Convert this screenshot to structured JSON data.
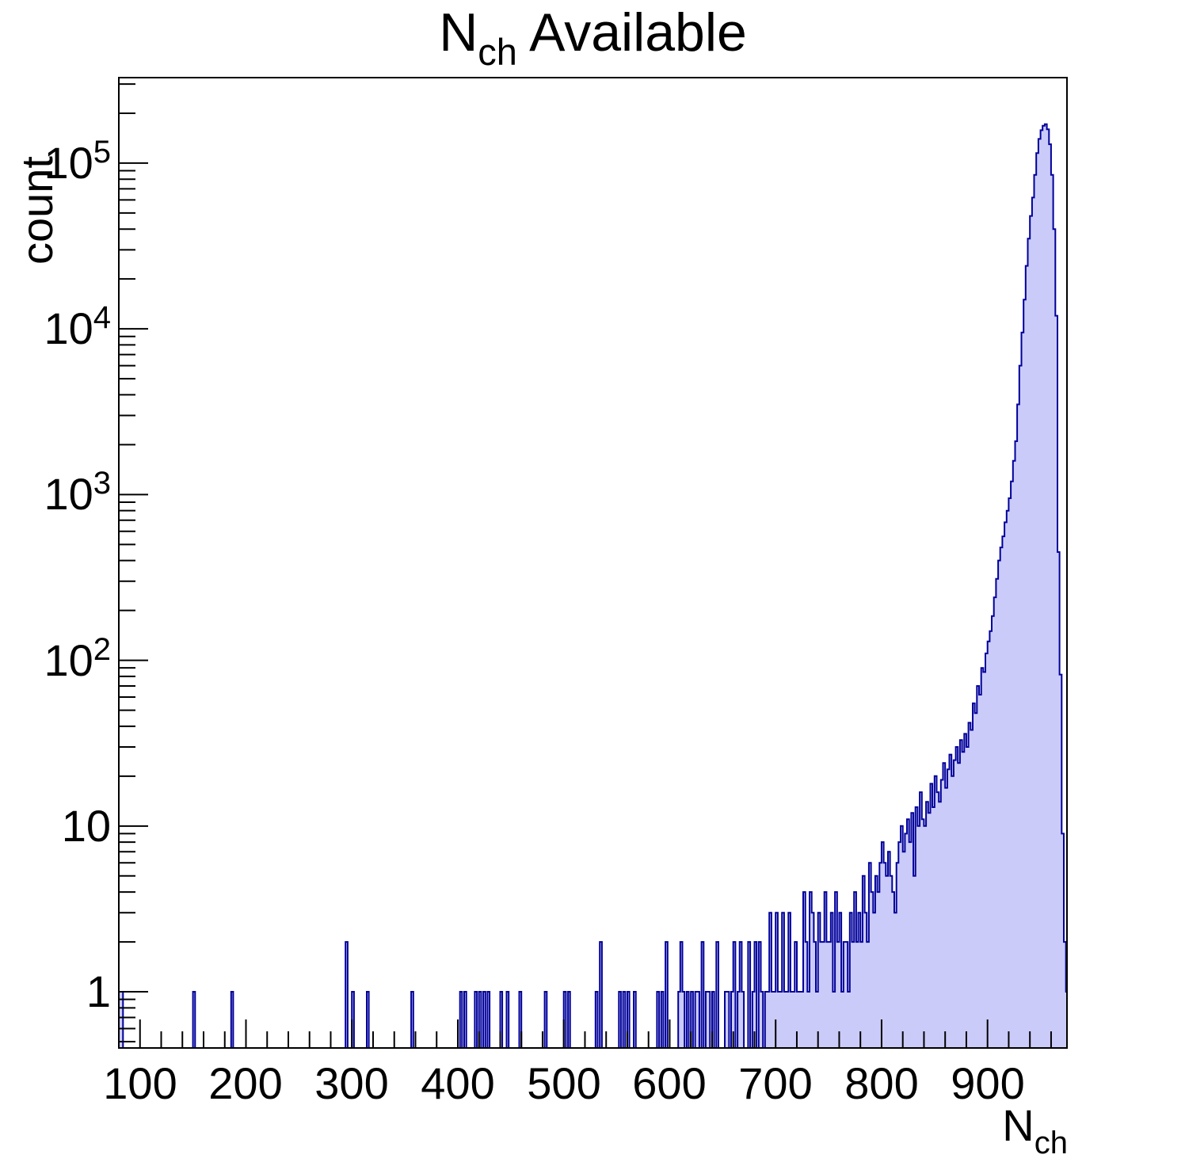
{
  "title": {
    "base": "N",
    "sub": "ch",
    "rest": " Available"
  },
  "axes": {
    "x": {
      "label_base": "N",
      "label_sub": "ch",
      "min": 80,
      "max": 975,
      "major_ticks": [
        100,
        200,
        300,
        400,
        500,
        600,
        700,
        800,
        900
      ],
      "minor_step": 20,
      "tick_labels": [
        "100",
        "200",
        "300",
        "400",
        "500",
        "600",
        "700",
        "800",
        "900"
      ]
    },
    "y": {
      "label": "count",
      "scale": "log",
      "min": 0.458,
      "max": 328000,
      "major_labels": [
        {
          "value": 1,
          "base": "1",
          "sup": ""
        },
        {
          "value": 10,
          "base": "10",
          "sup": ""
        },
        {
          "value": 100,
          "base": "10",
          "sup": "2"
        },
        {
          "value": 1000,
          "base": "10",
          "sup": "3"
        },
        {
          "value": 10000,
          "base": "10",
          "sup": "4"
        },
        {
          "value": 100000,
          "base": "10",
          "sup": "5"
        }
      ]
    }
  },
  "colors": {
    "fill": "#cbcbfa",
    "line": "#000099",
    "frame": "#000000",
    "background": "#ffffff"
  },
  "chart_data": {
    "type": "bar",
    "subtype": "histogram",
    "title": "N_ch Available",
    "xlabel": "N_ch",
    "ylabel": "count",
    "yscale": "log",
    "xlim": [
      80,
      975
    ],
    "ylim": [
      0.458,
      328000
    ],
    "bin_width": 2,
    "peak": {
      "x": 955,
      "count": 172000
    },
    "bins": [
      [
        80,
        1
      ],
      [
        82,
        1
      ],
      [
        150,
        1
      ],
      [
        186,
        1
      ],
      [
        294,
        2
      ],
      [
        300,
        1
      ],
      [
        314,
        1
      ],
      [
        356,
        1
      ],
      [
        402,
        1
      ],
      [
        406,
        1
      ],
      [
        416,
        1
      ],
      [
        420,
        1
      ],
      [
        424,
        1
      ],
      [
        428,
        1
      ],
      [
        440,
        1
      ],
      [
        446,
        1
      ],
      [
        458,
        1
      ],
      [
        482,
        1
      ],
      [
        500,
        1
      ],
      [
        504,
        1
      ],
      [
        530,
        1
      ],
      [
        534,
        2
      ],
      [
        552,
        1
      ],
      [
        556,
        1
      ],
      [
        560,
        1
      ],
      [
        566,
        1
      ],
      [
        588,
        1
      ],
      [
        592,
        1
      ],
      [
        596,
        2
      ],
      [
        608,
        1
      ],
      [
        610,
        2
      ],
      [
        612,
        1
      ],
      [
        616,
        1
      ],
      [
        620,
        1
      ],
      [
        624,
        1
      ],
      [
        626,
        1
      ],
      [
        630,
        2
      ],
      [
        634,
        1
      ],
      [
        636,
        1
      ],
      [
        640,
        1
      ],
      [
        644,
        2
      ],
      [
        652,
        1
      ],
      [
        654,
        1
      ],
      [
        658,
        1
      ],
      [
        660,
        2
      ],
      [
        664,
        1
      ],
      [
        666,
        2
      ],
      [
        668,
        1
      ],
      [
        674,
        2
      ],
      [
        678,
        1
      ],
      [
        680,
        2
      ],
      [
        684,
        2
      ],
      [
        686,
        1
      ],
      [
        690,
        1
      ],
      [
        692,
        1
      ],
      [
        694,
        3
      ],
      [
        696,
        1
      ],
      [
        698,
        1
      ],
      [
        700,
        3
      ],
      [
        702,
        1
      ],
      [
        704,
        1
      ],
      [
        706,
        3
      ],
      [
        708,
        1
      ],
      [
        710,
        1
      ],
      [
        712,
        3
      ],
      [
        714,
        1
      ],
      [
        716,
        1
      ],
      [
        718,
        2
      ],
      [
        720,
        1
      ],
      [
        722,
        1
      ],
      [
        724,
        1
      ],
      [
        726,
        4
      ],
      [
        728,
        2
      ],
      [
        730,
        1
      ],
      [
        732,
        4
      ],
      [
        734,
        3
      ],
      [
        736,
        2
      ],
      [
        738,
        1
      ],
      [
        740,
        3
      ],
      [
        742,
        2
      ],
      [
        744,
        2
      ],
      [
        746,
        4
      ],
      [
        748,
        2
      ],
      [
        750,
        2
      ],
      [
        752,
        3
      ],
      [
        754,
        1
      ],
      [
        756,
        4
      ],
      [
        758,
        2
      ],
      [
        760,
        3
      ],
      [
        762,
        1
      ],
      [
        764,
        2
      ],
      [
        766,
        2
      ],
      [
        768,
        1
      ],
      [
        770,
        3
      ],
      [
        772,
        2
      ],
      [
        774,
        4
      ],
      [
        776,
        2
      ],
      [
        778,
        3
      ],
      [
        780,
        2
      ],
      [
        782,
        5
      ],
      [
        784,
        3
      ],
      [
        786,
        2
      ],
      [
        788,
        6
      ],
      [
        790,
        4
      ],
      [
        792,
        3
      ],
      [
        794,
        5
      ],
      [
        796,
        4
      ],
      [
        798,
        6
      ],
      [
        800,
        8
      ],
      [
        802,
        6
      ],
      [
        804,
        5
      ],
      [
        806,
        7
      ],
      [
        808,
        5
      ],
      [
        810,
        4
      ],
      [
        812,
        3
      ],
      [
        814,
        6
      ],
      [
        816,
        8
      ],
      [
        818,
        10
      ],
      [
        820,
        7
      ],
      [
        822,
        9
      ],
      [
        824,
        11
      ],
      [
        826,
        8
      ],
      [
        828,
        12
      ],
      [
        830,
        5
      ],
      [
        832,
        13
      ],
      [
        834,
        10
      ],
      [
        836,
        16
      ],
      [
        838,
        11
      ],
      [
        840,
        10
      ],
      [
        842,
        14
      ],
      [
        844,
        12
      ],
      [
        846,
        18
      ],
      [
        848,
        13
      ],
      [
        850,
        20
      ],
      [
        852,
        16
      ],
      [
        854,
        14
      ],
      [
        856,
        19
      ],
      [
        858,
        24
      ],
      [
        860,
        17
      ],
      [
        862,
        22
      ],
      [
        864,
        27
      ],
      [
        866,
        20
      ],
      [
        868,
        25
      ],
      [
        870,
        30
      ],
      [
        872,
        24
      ],
      [
        874,
        33
      ],
      [
        876,
        28
      ],
      [
        878,
        36
      ],
      [
        880,
        30
      ],
      [
        882,
        42
      ],
      [
        884,
        38
      ],
      [
        886,
        55
      ],
      [
        888,
        48
      ],
      [
        890,
        70
      ],
      [
        892,
        62
      ],
      [
        894,
        90
      ],
      [
        896,
        85
      ],
      [
        898,
        110
      ],
      [
        900,
        130
      ],
      [
        902,
        150
      ],
      [
        904,
        185
      ],
      [
        906,
        240
      ],
      [
        908,
        310
      ],
      [
        910,
        400
      ],
      [
        912,
        480
      ],
      [
        914,
        560
      ],
      [
        916,
        680
      ],
      [
        918,
        800
      ],
      [
        920,
        950
      ],
      [
        922,
        1200
      ],
      [
        924,
        1600
      ],
      [
        926,
        2100
      ],
      [
        928,
        3500
      ],
      [
        930,
        6000
      ],
      [
        932,
        9500
      ],
      [
        934,
        15000
      ],
      [
        936,
        24000
      ],
      [
        938,
        35000
      ],
      [
        940,
        48000
      ],
      [
        942,
        62000
      ],
      [
        944,
        85000
      ],
      [
        946,
        115000
      ],
      [
        948,
        140000
      ],
      [
        950,
        158000
      ],
      [
        952,
        168000
      ],
      [
        954,
        172000
      ],
      [
        956,
        160000
      ],
      [
        958,
        130000
      ],
      [
        960,
        85000
      ],
      [
        962,
        40000
      ],
      [
        964,
        12000
      ],
      [
        966,
        450
      ],
      [
        968,
        82
      ],
      [
        970,
        9
      ],
      [
        972,
        2
      ],
      [
        974,
        1
      ]
    ]
  }
}
